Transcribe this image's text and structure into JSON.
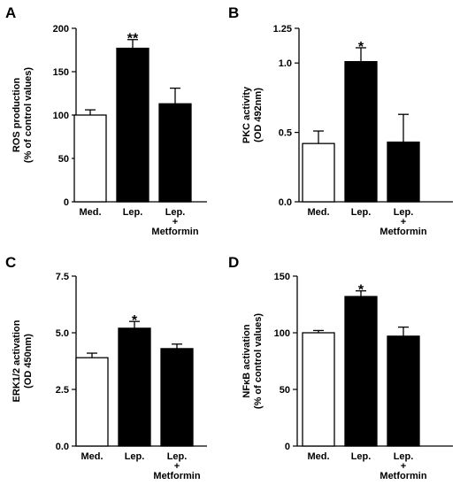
{
  "colors": {
    "filled": "#000000",
    "open": "#ffffff",
    "stroke": "#000000"
  },
  "chart_data": [
    {
      "type": "bar",
      "panel": "A",
      "ylabel": [
        "ROS production",
        "(% of control values)"
      ],
      "ylim": [
        0,
        200
      ],
      "yticks": [
        "0",
        "50",
        "100",
        "150",
        "200"
      ],
      "categories": [
        [
          "Med."
        ],
        [
          "Lep."
        ],
        [
          "Lep.",
          "+",
          "Metformin"
        ]
      ],
      "values": [
        100,
        177,
        113
      ],
      "errors": [
        6,
        10,
        18
      ],
      "fills": [
        "open",
        "filled",
        "filled"
      ],
      "significance": [
        "",
        "**",
        ""
      ]
    },
    {
      "type": "bar",
      "panel": "B",
      "ylabel": [
        "PKC activity",
        "(OD 492nm)"
      ],
      "ylim": [
        0,
        1.25
      ],
      "yticks": [
        "0.0",
        "0.5",
        "1.0",
        "1.25"
      ],
      "categories": [
        [
          "Med."
        ],
        [
          "Lep."
        ],
        [
          "Lep.",
          "+",
          "Metformin"
        ]
      ],
      "values": [
        0.42,
        1.01,
        0.43
      ],
      "errors": [
        0.09,
        0.1,
        0.2
      ],
      "fills": [
        "open",
        "filled",
        "filled"
      ],
      "significance": [
        "",
        "*",
        ""
      ]
    },
    {
      "type": "bar",
      "panel": "C",
      "ylabel": [
        "ERK1/2 activation",
        "(OD 450nm)"
      ],
      "ylim": [
        0,
        7.5
      ],
      "yticks": [
        "0.0",
        "2.5",
        "5.0",
        "7.5"
      ],
      "categories": [
        [
          "Med."
        ],
        [
          "Lep."
        ],
        [
          "Lep.",
          "+",
          "Metformin"
        ]
      ],
      "values": [
        3.9,
        5.2,
        4.3
      ],
      "errors": [
        0.2,
        0.3,
        0.2
      ],
      "fills": [
        "open",
        "filled",
        "filled"
      ],
      "significance": [
        "",
        "*",
        ""
      ]
    },
    {
      "type": "bar",
      "panel": "D",
      "ylabel": [
        "NFκB activation",
        "(% of control values)"
      ],
      "ylim": [
        0,
        150
      ],
      "yticks": [
        "0",
        "50",
        "100",
        "150"
      ],
      "categories": [
        [
          "Med."
        ],
        [
          "Lep."
        ],
        [
          "Lep.",
          "+",
          "Metformin"
        ]
      ],
      "values": [
        100,
        132,
        97
      ],
      "errors": [
        2,
        5,
        8
      ],
      "fills": [
        "open",
        "filled",
        "filled"
      ],
      "significance": [
        "",
        "*",
        ""
      ]
    }
  ]
}
